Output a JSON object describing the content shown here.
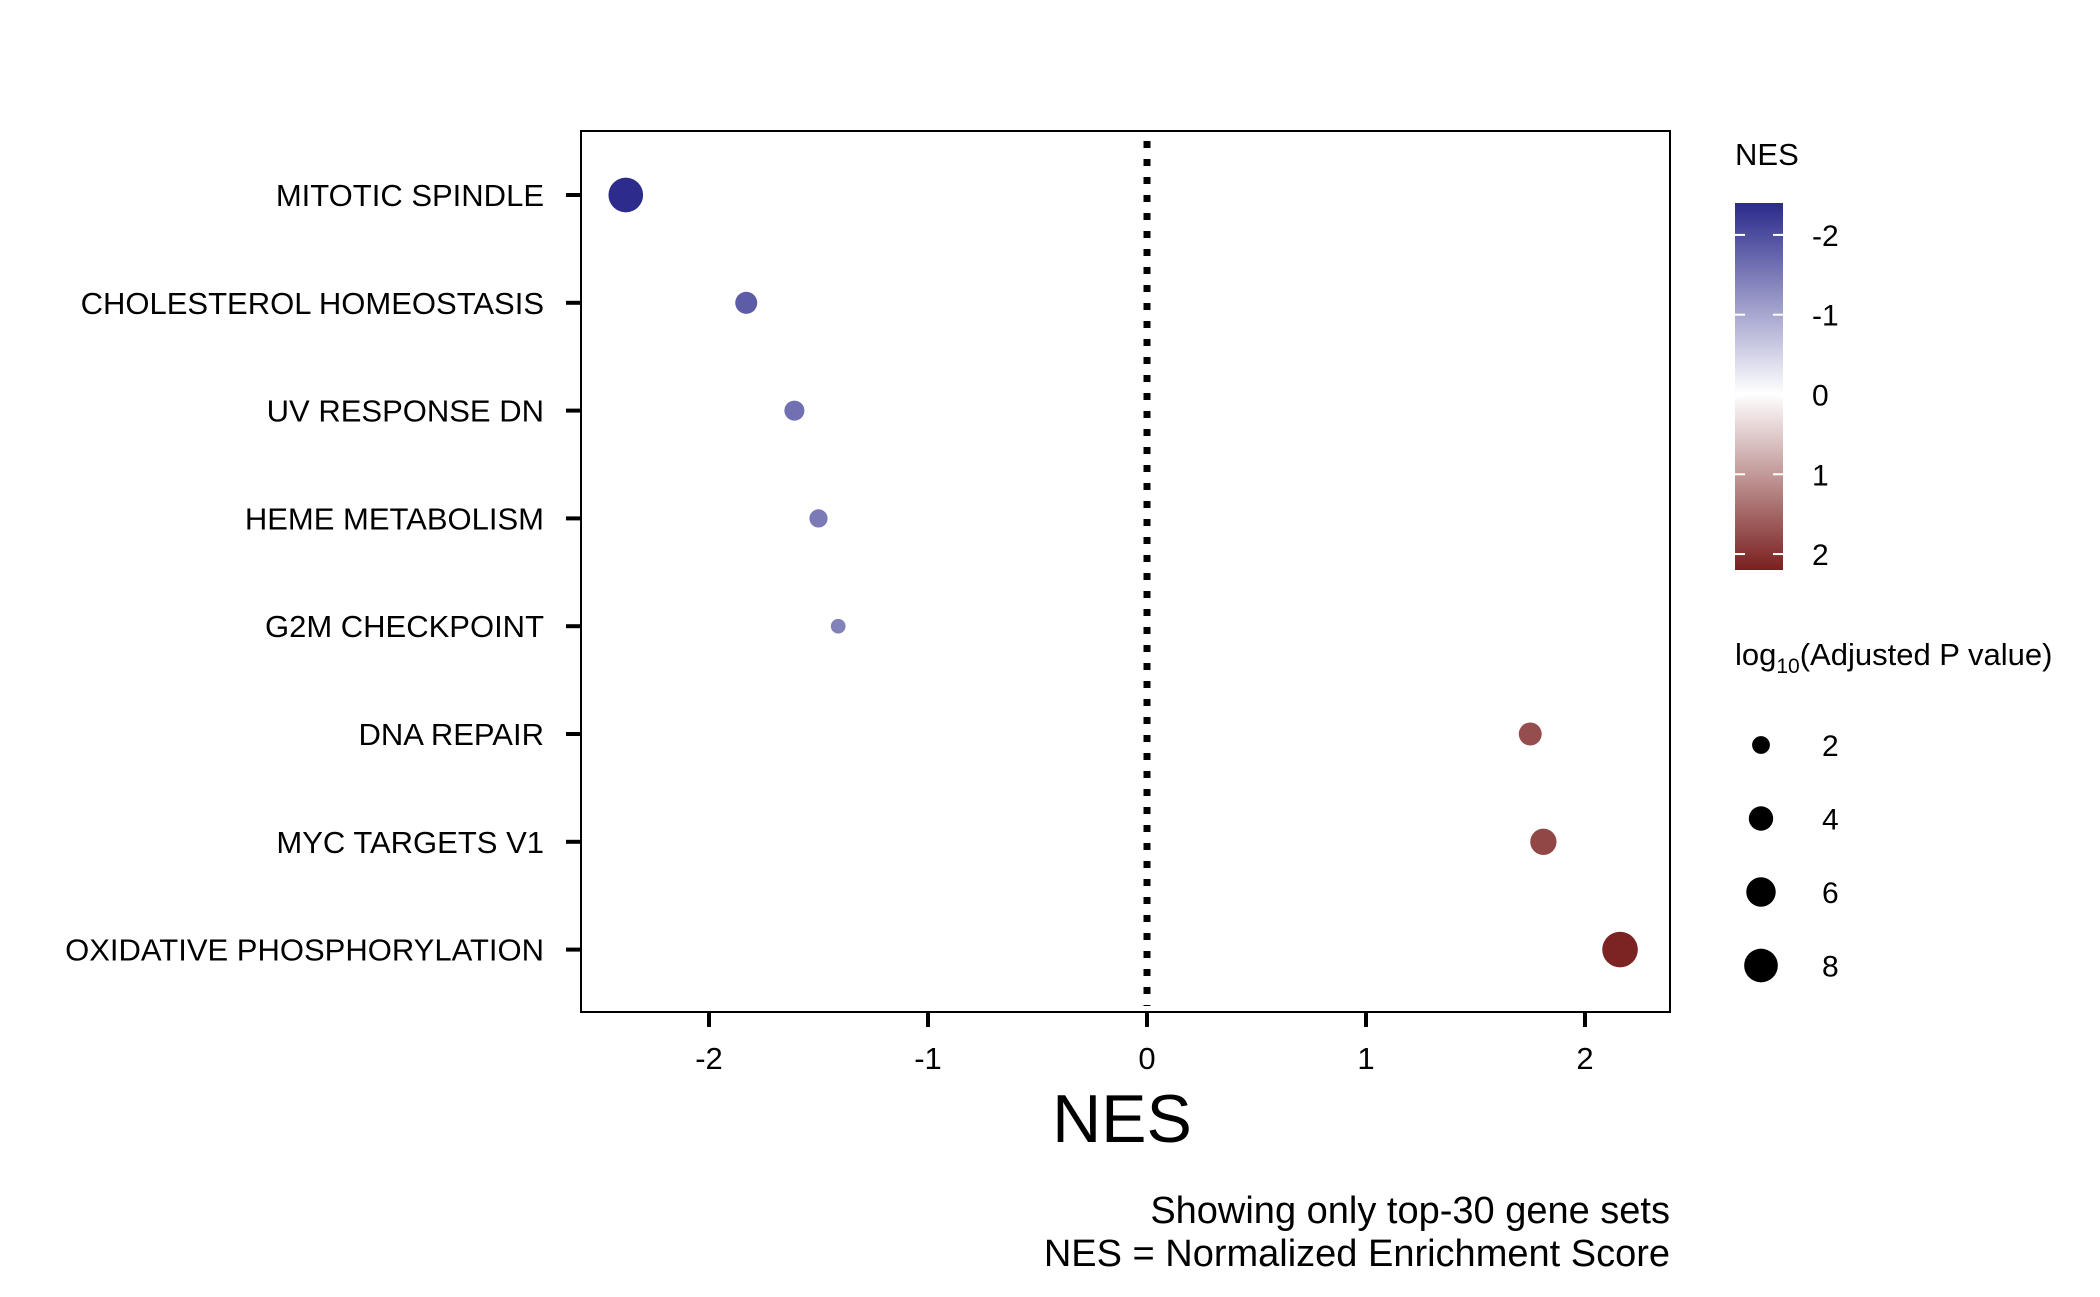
{
  "chart_data": {
    "type": "scatter",
    "xlabel": "NES",
    "xlim": [
      -2.6,
      2.4
    ],
    "xticks": [
      "-2",
      "-1",
      "0",
      "1",
      "2"
    ],
    "xtick_values": [
      -2,
      -1,
      0,
      1,
      2
    ],
    "reference_line_x": 0,
    "grid": false,
    "categories": [
      "MITOTIC SPINDLE",
      "CHOLESTEROL HOMEOSTASIS",
      "UV RESPONSE DN",
      "HEME METABOLISM",
      "G2M CHECKPOINT",
      "DNA REPAIR",
      "MYC TARGETS V1",
      "OXIDATIVE PHOSPHORYLATION"
    ],
    "points": [
      {
        "set": "MITOTIC SPINDLE",
        "nes": -2.38,
        "log10_adj_p": 8.5
      },
      {
        "set": "CHOLESTEROL HOMEOSTASIS",
        "nes": -1.83,
        "log10_adj_p": 3.2
      },
      {
        "set": "UV RESPONSE DN",
        "nes": -1.61,
        "log10_adj_p": 2.6
      },
      {
        "set": "HEME METABOLISM",
        "nes": -1.5,
        "log10_adj_p": 2.1
      },
      {
        "set": "G2M CHECKPOINT",
        "nes": -1.41,
        "log10_adj_p": 1.3
      },
      {
        "set": "DNA REPAIR",
        "nes": 1.75,
        "log10_adj_p": 3.5
      },
      {
        "set": "MYC TARGETS V1",
        "nes": 1.81,
        "log10_adj_p": 4.7
      },
      {
        "set": "OXIDATIVE PHOSPHORYLATION",
        "nes": 2.16,
        "log10_adj_p": 9.0
      }
    ],
    "color_legend": {
      "title": "NES",
      "ticks": [
        "-2",
        "-1",
        "0",
        "1",
        "2"
      ],
      "tick_values": [
        -2,
        -1,
        0,
        1,
        2
      ],
      "range": [
        -2.4,
        2.2
      ],
      "low_color": "#2b2a8c",
      "mid_color": "#ffffff",
      "high_color": "#7a1f1f"
    },
    "size_legend": {
      "title_prefix": "log",
      "title_sub": "10",
      "title_suffix": "(Adjusted P value)",
      "ticks": [
        "2",
        "4",
        "6",
        "8"
      ],
      "tick_values": [
        2,
        4,
        6,
        8
      ]
    },
    "caption": [
      "Showing only top-30 gene sets",
      "NES = Normalized Enrichment Score"
    ]
  }
}
